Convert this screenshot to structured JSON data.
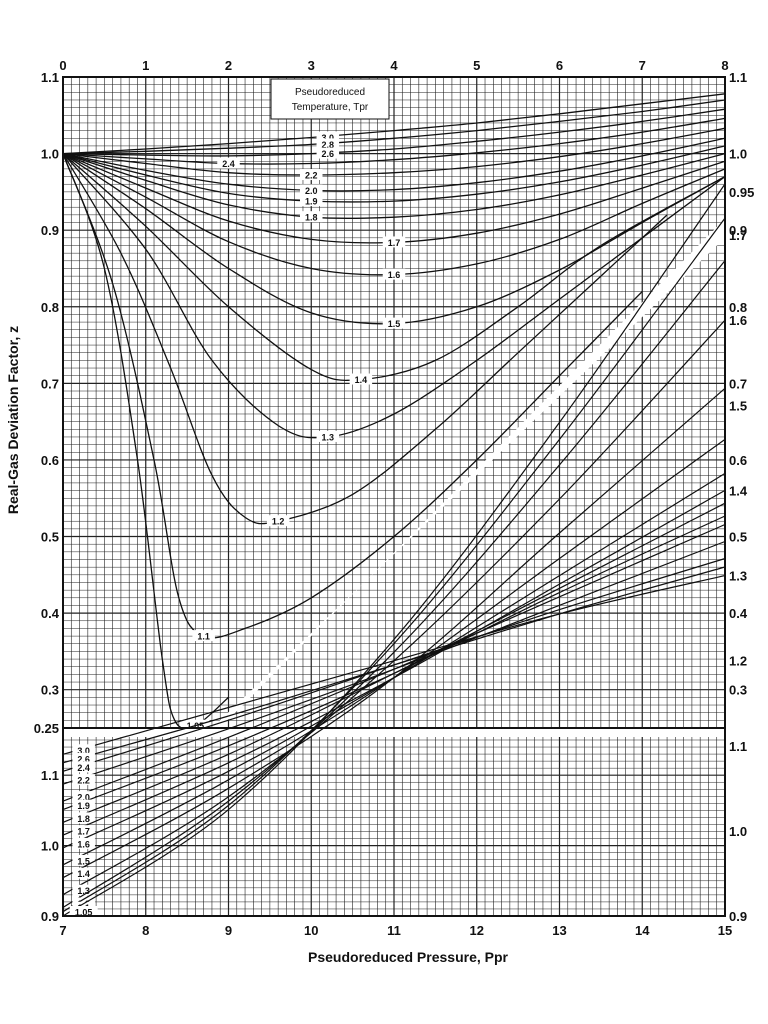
{
  "chart_data": {
    "type": "line",
    "xlabel": "Pseudoreduced Pressure, Ppr",
    "ylabel": "Real-Gas Deviation Factor, z",
    "legend_title_line1": "Pseudoreduced",
    "legend_title_line2": "Temperature, Tpr",
    "legend_placement": "top-center",
    "grid": true,
    "upper_chart": {
      "xlim": [
        0,
        8
      ],
      "x_ticks": [
        "0",
        "1",
        "2",
        "3",
        "4",
        "5",
        "6",
        "7",
        "8"
      ],
      "ylim_left": [
        0.25,
        1.1
      ],
      "y_ticks_left": [
        "0.25",
        "0.3",
        "0.4",
        "0.5",
        "0.6",
        "0.7",
        "0.8",
        "0.9",
        "1.0",
        "1.1"
      ],
      "y_ticks_right": [
        "1.1",
        "1.0",
        "0.95",
        "0.9",
        "0.8",
        "0.7",
        "0.6",
        "0.5",
        "0.4",
        "0.3"
      ],
      "series": [
        {
          "name": "3.0",
          "x": [
            0,
            1,
            2,
            3,
            4,
            5,
            6,
            7,
            8
          ],
          "y": [
            1.0,
            1.006,
            1.013,
            1.021,
            1.03,
            1.04,
            1.052,
            1.065,
            1.078
          ]
        },
        {
          "name": "2.8",
          "x": [
            0,
            1,
            2,
            3,
            4,
            5,
            6,
            7,
            8
          ],
          "y": [
            1.0,
            1.003,
            1.007,
            1.012,
            1.02,
            1.03,
            1.042,
            1.055,
            1.07
          ]
        },
        {
          "name": "2.6",
          "x": [
            0,
            1,
            2,
            3,
            4,
            5,
            6,
            7,
            8
          ],
          "y": [
            1.0,
            0.998,
            0.997,
            1.0,
            1.006,
            1.016,
            1.028,
            1.042,
            1.058
          ]
        },
        {
          "name": "2.4",
          "x": [
            0,
            1,
            2,
            3,
            4,
            5,
            6,
            7,
            8
          ],
          "y": [
            1.0,
            0.993,
            0.987,
            0.987,
            0.992,
            1.001,
            1.013,
            1.028,
            1.046
          ]
        },
        {
          "name": "2.2",
          "x": [
            0,
            1,
            2,
            3,
            4,
            5,
            6,
            7,
            8
          ],
          "y": [
            1.0,
            0.987,
            0.975,
            0.972,
            0.975,
            0.983,
            0.996,
            1.013,
            1.033
          ]
        },
        {
          "name": "2.0",
          "x": [
            0,
            1,
            2,
            3,
            4,
            5,
            6,
            7,
            8
          ],
          "y": [
            1.0,
            0.978,
            0.96,
            0.952,
            0.953,
            0.962,
            0.977,
            0.997,
            1.02
          ]
        },
        {
          "name": "1.9",
          "x": [
            0,
            1,
            2,
            3,
            4,
            5,
            6,
            7,
            8
          ],
          "y": [
            1.0,
            0.972,
            0.948,
            0.938,
            0.938,
            0.947,
            0.963,
            0.985,
            1.01
          ]
        },
        {
          "name": "1.8",
          "x": [
            0,
            1,
            2,
            3,
            4,
            5,
            6,
            7,
            8
          ],
          "y": [
            1.0,
            0.965,
            0.933,
            0.917,
            0.917,
            0.927,
            0.946,
            0.972,
            1.0
          ]
        },
        {
          "name": "1.7",
          "x": [
            0,
            1,
            2,
            3,
            4,
            5,
            6,
            7,
            8
          ],
          "y": [
            1.0,
            0.955,
            0.912,
            0.888,
            0.884,
            0.896,
            0.921,
            0.955,
            0.99
          ]
        },
        {
          "name": "1.6",
          "x": [
            0,
            1,
            2,
            3,
            4,
            5,
            6,
            7,
            8
          ],
          "y": [
            1.0,
            0.943,
            0.885,
            0.85,
            0.842,
            0.856,
            0.888,
            0.935,
            0.98
          ]
        },
        {
          "name": "1.5",
          "x": [
            0,
            1,
            2,
            3,
            4,
            5,
            6,
            7,
            8
          ],
          "y": [
            1.0,
            0.928,
            0.85,
            0.792,
            0.778,
            0.8,
            0.848,
            0.91,
            0.97
          ]
        },
        {
          "name": "1.4",
          "x": [
            0,
            1,
            2,
            3,
            3.6,
            4.5,
            5.5,
            6.5,
            8
          ],
          "y": [
            1.0,
            0.905,
            0.8,
            0.718,
            0.705,
            0.73,
            0.8,
            0.88,
            0.97
          ]
        },
        {
          "name": "1.3",
          "x": [
            0,
            1,
            1.8,
            2.6,
            3.2,
            4,
            5,
            6,
            7,
            8
          ],
          "y": [
            1.0,
            0.875,
            0.73,
            0.645,
            0.63,
            0.66,
            0.73,
            0.81,
            0.89,
            0.97
          ]
        },
        {
          "name": "1.2",
          "x": [
            0,
            0.7,
            1.3,
            1.8,
            2.2,
            2.6,
            3.5,
            4.5,
            5.5,
            6.5,
            7.3
          ],
          "y": [
            1.0,
            0.87,
            0.72,
            0.58,
            0.525,
            0.52,
            0.555,
            0.64,
            0.74,
            0.84,
            0.92
          ]
        },
        {
          "name": "1.1",
          "x": [
            0,
            0.6,
            1.1,
            1.4,
            1.7,
            2.2,
            3,
            4,
            5,
            6,
            7
          ],
          "y": [
            1.0,
            0.83,
            0.6,
            0.42,
            0.37,
            0.38,
            0.42,
            0.5,
            0.6,
            0.71,
            0.82
          ]
        },
        {
          "name": "1.05",
          "x": [
            0,
            0.5,
            0.9,
            1.2,
            1.35,
            1.6,
            2.0
          ],
          "y": [
            1.0,
            0.85,
            0.6,
            0.34,
            0.26,
            0.253,
            0.29
          ]
        }
      ]
    },
    "lower_chart": {
      "xlim": [
        7,
        15
      ],
      "x_ticks": [
        "7",
        "8",
        "9",
        "10",
        "11",
        "12",
        "13",
        "14",
        "15"
      ],
      "ylim": [
        0.9,
        1.15
      ],
      "y_ticks_left": [
        "0.9",
        "1.0",
        "1.1"
      ],
      "y_ticks_right": [
        "0.9",
        "1.0",
        "1.1",
        "1.2",
        "1.3",
        "1.4",
        "1.5",
        "1.6",
        "1.7"
      ],
      "upper_overlay_ylim": [
        0.9,
        1.8
      ],
      "series": [
        {
          "name": "3.0",
          "x": [
            7,
            9,
            11,
            13,
            15
          ],
          "y": [
            1.09,
            1.145,
            1.2,
            1.255,
            1.3
          ]
        },
        {
          "name": "2.6",
          "x": [
            7,
            9,
            11,
            13,
            15
          ],
          "y": [
            1.08,
            1.135,
            1.195,
            1.255,
            1.31
          ]
        },
        {
          "name": "2.4",
          "x": [
            7,
            9,
            11,
            13,
            15
          ],
          "y": [
            1.07,
            1.13,
            1.195,
            1.26,
            1.32
          ]
        },
        {
          "name": "2.2",
          "x": [
            7,
            9,
            11,
            13,
            15
          ],
          "y": [
            1.055,
            1.12,
            1.19,
            1.265,
            1.34
          ]
        },
        {
          "name": "2.0",
          "x": [
            7,
            9,
            11,
            13,
            15
          ],
          "y": [
            1.035,
            1.11,
            1.19,
            1.275,
            1.36
          ]
        },
        {
          "name": "1.9",
          "x": [
            7,
            9,
            11,
            13,
            15
          ],
          "y": [
            1.025,
            1.1,
            1.185,
            1.28,
            1.37
          ]
        },
        {
          "name": "1.8",
          "x": [
            7,
            9,
            11,
            13,
            15
          ],
          "y": [
            1.01,
            1.09,
            1.185,
            1.285,
            1.385
          ]
        },
        {
          "name": "1.7",
          "x": [
            7,
            9,
            11,
            13,
            15
          ],
          "y": [
            0.995,
            1.08,
            1.18,
            1.29,
            1.4
          ]
        },
        {
          "name": "1.6",
          "x": [
            7,
            9,
            11,
            13,
            15
          ],
          "y": [
            0.98,
            1.07,
            1.18,
            1.3,
            1.42
          ]
        },
        {
          "name": "1.5",
          "x": [
            7,
            9,
            11,
            13,
            15
          ],
          "y": [
            0.96,
            1.06,
            1.18,
            1.32,
            1.46
          ]
        },
        {
          "name": "1.4",
          "x": [
            7,
            9,
            11,
            13,
            15
          ],
          "y": [
            0.945,
            1.05,
            1.18,
            1.35,
            1.52
          ]
        },
        {
          "name": "1.3",
          "x": [
            7,
            9,
            11,
            13,
            15
          ],
          "y": [
            0.925,
            1.04,
            1.2,
            1.39,
            1.6
          ]
        },
        {
          "name": "1.2",
          "x": [
            7,
            9,
            11,
            13,
            15
          ],
          "y": [
            0.91,
            1.035,
            1.21,
            1.43,
            1.67
          ]
        },
        {
          "name": "1.1",
          "x": [
            7,
            9,
            11,
            13,
            15
          ],
          "y": [
            0.905,
            1.03,
            1.22,
            1.46,
            1.72
          ]
        },
        {
          "name": "1.05",
          "x": [
            7,
            9,
            11,
            13,
            15
          ],
          "y": [
            0.9,
            1.025,
            1.225,
            1.48,
            1.76
          ]
        }
      ]
    }
  }
}
